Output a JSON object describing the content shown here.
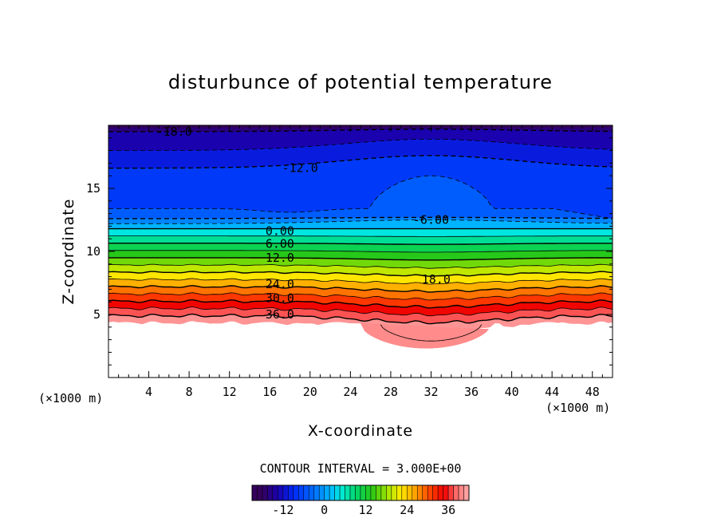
{
  "chart_data": {
    "type": "heatmap",
    "title": "disturbunce of potential temperature",
    "xlabel": "X-coordinate",
    "ylabel": "Z-coordinate",
    "x_unit": "(×1000 m)",
    "y_unit": "(×1000 m)",
    "xlim": [
      0,
      50
    ],
    "ylim": [
      0,
      20
    ],
    "x_ticks": [
      4,
      8,
      12,
      16,
      20,
      24,
      28,
      32,
      36,
      40,
      44,
      48
    ],
    "x_tick_labels": [
      "4",
      "8",
      "12",
      "16",
      "20",
      "24",
      "28",
      "32",
      "36",
      "40",
      "44",
      "48"
    ],
    "y_ticks": [
      5,
      10,
      15
    ],
    "y_tick_labels": [
      "5",
      "10",
      "15"
    ],
    "contour_interval_text": "CONTOUR INTERVAL = 3.000E+00",
    "contour_interval": 3.0,
    "value_range": [
      -18,
      42
    ],
    "colorbar": {
      "range": [
        -21,
        42
      ],
      "tick_values": [
        -12,
        0,
        12,
        24,
        36
      ],
      "tick_labels": [
        "-12",
        "0",
        "12",
        "24",
        "36"
      ]
    },
    "contour_labels": [
      {
        "text": "-18.0",
        "x": 6.5,
        "z": 19.5
      },
      {
        "text": "-12.0",
        "x": 19.0,
        "z": 16.6
      },
      {
        "text": "-6.00",
        "x": 32.0,
        "z": 12.5
      },
      {
        "text": "0.00",
        "x": 17.0,
        "z": 11.6
      },
      {
        "text": "6.00",
        "x": 17.0,
        "z": 10.6
      },
      {
        "text": "12.0",
        "x": 17.0,
        "z": 9.5
      },
      {
        "text": "18.0",
        "x": 32.5,
        "z": 7.8
      },
      {
        "text": "24.0",
        "x": 17.0,
        "z": 7.4
      },
      {
        "text": "30.0",
        "x": 17.0,
        "z": 6.3
      },
      {
        "text": "36.0",
        "x": 17.0,
        "z": 5.0
      }
    ],
    "grid": false,
    "legend": "colorbar-bottom"
  }
}
